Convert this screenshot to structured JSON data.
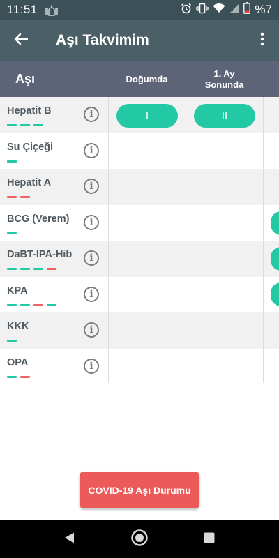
{
  "status_bar": {
    "time": "11:51",
    "battery_text": "%7",
    "icons": [
      "mosque-icon",
      "alarm-icon",
      "vibrate-icon",
      "wifi-icon",
      "signal-icon",
      "battery-icon"
    ]
  },
  "app_bar": {
    "title": "Aşı Takvimim",
    "back_icon": "arrow-left-icon",
    "more_icon": "more-vertical-icon"
  },
  "table": {
    "header": {
      "vaccine": "Aşı",
      "columns": [
        "Doğumda",
        "1. Ay\nSonunda"
      ]
    },
    "rows": [
      {
        "name": "Hepatit B",
        "dashes": [
          "green",
          "green",
          "green"
        ]
      },
      {
        "name": "Su Çiçeği",
        "dashes": [
          "green"
        ]
      },
      {
        "name": "Hepatit A",
        "dashes": [
          "red",
          "red"
        ]
      },
      {
        "name": "BCG (Verem)",
        "dashes": [
          "green"
        ]
      },
      {
        "name": "DaBT-IPA-Hib",
        "dashes": [
          "green",
          "green",
          "green",
          "red"
        ]
      },
      {
        "name": "KPA",
        "dashes": [
          "green",
          "green",
          "red",
          "green"
        ]
      },
      {
        "name": "KKK",
        "dashes": [
          "green"
        ]
      },
      {
        "name": "OPA",
        "dashes": [
          "green",
          "red"
        ]
      }
    ],
    "doses": {
      "hepatit_b_birth": "I",
      "hepatit_b_month1": "II"
    }
  },
  "covid_button": "COVID-19 Aşı Durumu",
  "colors": {
    "status_bar": "#3c5157",
    "app_bar": "#4b5f66",
    "table_header": "#5d6477",
    "green": "#22c9a4",
    "red": "#ef6463",
    "covid": "#ec5a5a"
  },
  "nav": [
    "back-icon",
    "home-icon",
    "recents-icon"
  ]
}
